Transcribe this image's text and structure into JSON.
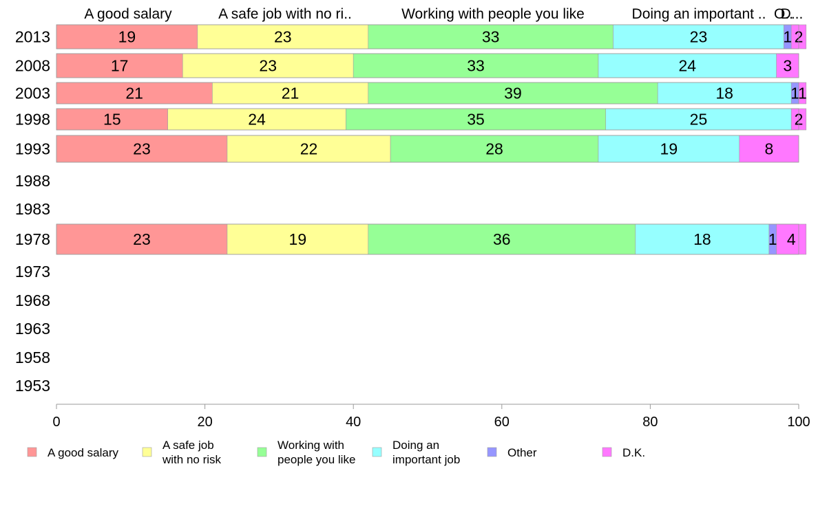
{
  "chart_data": {
    "type": "bar",
    "orientation": "horizontal",
    "stacked": true,
    "title": "",
    "xlabel": "",
    "ylabel": "",
    "xlim": [
      0,
      100
    ],
    "x_ticks": [
      0,
      20,
      40,
      60,
      80,
      100
    ],
    "categories": [
      "2013",
      "2008",
      "2003",
      "1998",
      "1993",
      "1988",
      "1983",
      "1978",
      "1973",
      "1968",
      "1963",
      "1958",
      "1953"
    ],
    "column_headers": [
      "A good salary",
      "A safe job with no ri..",
      "Working with people you like",
      "Doing an important ..",
      "O..",
      "D..."
    ],
    "series": [
      {
        "name": "A good salary",
        "legend_label": [
          "A good salary"
        ],
        "color": "#ff9696",
        "values": [
          19,
          17,
          21,
          15,
          23,
          null,
          null,
          23,
          null,
          null,
          null,
          null,
          null
        ]
      },
      {
        "name": "A safe job with no risk",
        "legend_label": [
          "A safe job",
          "with no risk"
        ],
        "color": "#ffff96",
        "values": [
          23,
          23,
          21,
          24,
          22,
          null,
          null,
          19,
          null,
          null,
          null,
          null,
          null
        ]
      },
      {
        "name": "Working with people you like",
        "legend_label": [
          "Working with",
          "people you like"
        ],
        "color": "#96ff96",
        "values": [
          33,
          33,
          39,
          35,
          28,
          null,
          null,
          36,
          null,
          null,
          null,
          null,
          null
        ]
      },
      {
        "name": "Doing an important job",
        "legend_label": [
          "Doing an",
          "important job"
        ],
        "color": "#96ffff",
        "values": [
          23,
          24,
          18,
          25,
          19,
          null,
          null,
          18,
          null,
          null,
          null,
          null,
          null
        ]
      },
      {
        "name": "Other",
        "legend_label": [
          "Other"
        ],
        "color": "#9696ff",
        "values": [
          1,
          0,
          1,
          0,
          0,
          null,
          null,
          1,
          null,
          null,
          null,
          null,
          null
        ]
      },
      {
        "name": "D.K.",
        "legend_label": [
          "D.K."
        ],
        "color": "#ff78ff",
        "values": [
          2,
          3,
          1,
          2,
          8,
          null,
          null,
          4,
          null,
          null,
          null,
          null,
          null
        ]
      }
    ],
    "grid": false,
    "legend_position": "bottom"
  }
}
